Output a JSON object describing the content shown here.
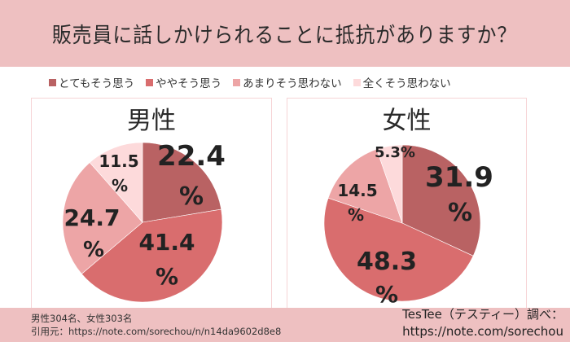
{
  "header": {
    "title": "販売員に話しかけられることに抵抗がありますか？"
  },
  "legend": [
    {
      "label": "とてもそう思う",
      "color": "#b96263"
    },
    {
      "label": "ややそう思う",
      "color": "#d96d6e"
    },
    {
      "label": "あまりそう思わない",
      "color": "#eda5a6"
    },
    {
      "label": "全くそう思わない",
      "color": "#fddadb"
    }
  ],
  "charts": {
    "male": {
      "title": "男性",
      "labels": [
        "22.4",
        "41.4",
        "24.7",
        "11.5"
      ]
    },
    "female": {
      "title": "女性",
      "labels": [
        "31.9",
        "48.3",
        "14.5",
        "5.3%"
      ]
    }
  },
  "footer": {
    "sample": "男性304名、女性303名",
    "source": "引用元：https://note.com/sorechou/n/n14da9602d8e8",
    "credit": "TesTee（テスティー）調べ：",
    "credit_url": "https://note.com/sorechou"
  },
  "chart_data": [
    {
      "type": "pie",
      "title": "男性",
      "categories": [
        "とてもそう思う",
        "ややそう思う",
        "あまりそう思わない",
        "全くそう思わない"
      ],
      "values": [
        22.4,
        41.4,
        24.7,
        11.5
      ],
      "colors": [
        "#b96263",
        "#d96d6e",
        "#eda5a6",
        "#fddadb"
      ],
      "unit": "%",
      "start_angle": "12 o'clock, clockwise"
    },
    {
      "type": "pie",
      "title": "女性",
      "categories": [
        "とてもそう思う",
        "ややそう思う",
        "あまりそう思わない",
        "全くそう思わない"
      ],
      "values": [
        31.9,
        48.3,
        14.5,
        5.3
      ],
      "colors": [
        "#b96263",
        "#d96d6e",
        "#eda5a6",
        "#fddadb"
      ],
      "unit": "%",
      "start_angle": "12 o'clock, clockwise"
    }
  ]
}
